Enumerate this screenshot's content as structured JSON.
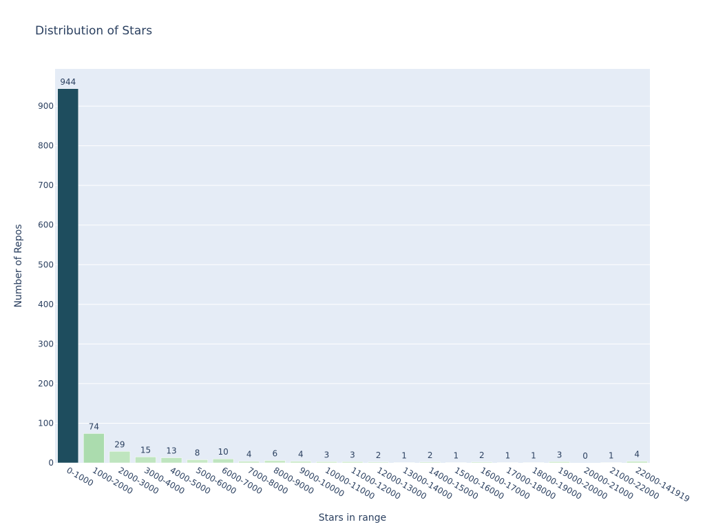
{
  "chart_data": {
    "type": "bar",
    "title": "Distribution of Stars",
    "xlabel": "Stars in range",
    "ylabel": "Number of Repos",
    "categories": [
      "0-1000",
      "1000-2000",
      "2000-3000",
      "3000-4000",
      "4000-5000",
      "5000-6000",
      "6000-7000",
      "7000-8000",
      "8000-9000",
      "9000-10000",
      "10000-11000",
      "11000-12000",
      "12000-13000",
      "13000-14000",
      "14000-15000",
      "15000-16000",
      "16000-17000",
      "17000-18000",
      "18000-19000",
      "19000-20000",
      "20000-21000",
      "21000-22000",
      "22000-141919"
    ],
    "values": [
      944,
      74,
      29,
      15,
      13,
      8,
      10,
      4,
      6,
      4,
      3,
      3,
      2,
      1,
      2,
      1,
      2,
      1,
      1,
      3,
      0,
      1,
      4
    ],
    "ylim": [
      0,
      994
    ],
    "yticks": [
      0,
      100,
      200,
      300,
      400,
      500,
      600,
      700,
      800,
      900
    ],
    "grid": true,
    "colors": {
      "plot_background": "#e5ecf6",
      "grid": "#ffffff",
      "bar_scale_low": "#d8f0d5",
      "bar_scale_high": "#1e4d5e",
      "text": "#2a3f5f"
    }
  }
}
